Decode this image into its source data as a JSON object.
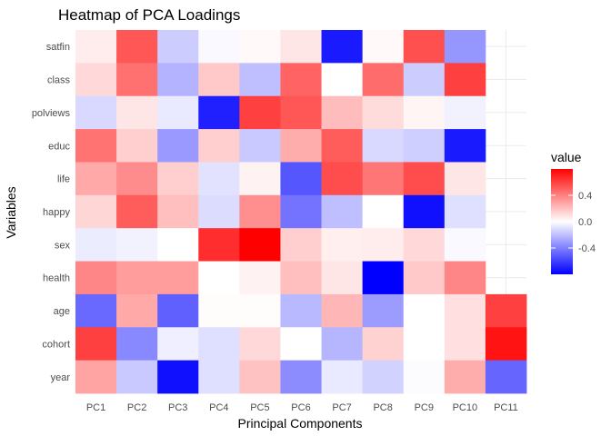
{
  "chart_data": {
    "type": "heatmap",
    "title": "Heatmap of PCA Loadings",
    "xlabel": "Principal Components",
    "ylabel": "Variables",
    "x_categories": [
      "PC1",
      "PC2",
      "PC3",
      "PC4",
      "PC5",
      "PC6",
      "PC7",
      "PC8",
      "PC9",
      "PC10",
      "PC11"
    ],
    "y_categories": [
      "satfin",
      "class",
      "polviews",
      "educ",
      "life",
      "happy",
      "sex",
      "health",
      "age",
      "cohort",
      "year"
    ],
    "values": [
      [
        0.06,
        0.53,
        -0.16,
        -0.02,
        0.02,
        0.08,
        -0.72,
        0.02,
        0.55,
        -0.33,
        null
      ],
      [
        0.12,
        0.45,
        -0.24,
        0.17,
        -0.2,
        0.49,
        0.0,
        0.46,
        -0.16,
        0.6,
        null
      ],
      [
        -0.12,
        0.08,
        -0.07,
        -0.7,
        0.6,
        0.53,
        0.21,
        0.11,
        0.03,
        -0.04,
        null
      ],
      [
        0.44,
        0.15,
        -0.32,
        0.15,
        -0.17,
        0.26,
        0.51,
        -0.12,
        -0.15,
        -0.72,
        null
      ],
      [
        0.27,
        0.36,
        0.15,
        -0.09,
        0.04,
        -0.53,
        0.56,
        0.43,
        0.56,
        0.08,
        null
      ],
      [
        0.13,
        0.51,
        0.2,
        -0.11,
        0.35,
        -0.44,
        -0.2,
        0.0,
        -0.75,
        -0.1,
        null
      ],
      [
        -0.06,
        -0.04,
        0.0,
        0.66,
        0.8,
        0.15,
        0.05,
        0.06,
        0.12,
        -0.02,
        null
      ],
      [
        0.38,
        0.31,
        0.31,
        0.0,
        0.04,
        0.2,
        0.08,
        -0.8,
        0.17,
        0.38,
        null
      ],
      [
        -0.47,
        0.27,
        -0.5,
        0.01,
        0.01,
        -0.22,
        0.23,
        -0.31,
        0.0,
        0.1,
        0.6
      ],
      [
        0.6,
        -0.37,
        -0.05,
        -0.1,
        0.12,
        0.0,
        -0.23,
        0.14,
        0.0,
        0.1,
        0.74
      ],
      [
        0.29,
        -0.17,
        -0.75,
        -0.1,
        0.19,
        -0.36,
        -0.07,
        -0.14,
        -0.01,
        0.26,
        -0.48
      ]
    ],
    "legend": {
      "title": "value",
      "ticks": [
        0.4,
        0.0,
        -0.4
      ],
      "tick_labels": [
        "0.4",
        "0.0",
        "-0.4"
      ],
      "range": [
        -0.8,
        0.8
      ],
      "placement": "right"
    },
    "colors": {
      "low": "#0000ff",
      "mid": "#ffffff",
      "high": "#ff0000",
      "grid": "#ebebeb"
    },
    "grid": true
  }
}
